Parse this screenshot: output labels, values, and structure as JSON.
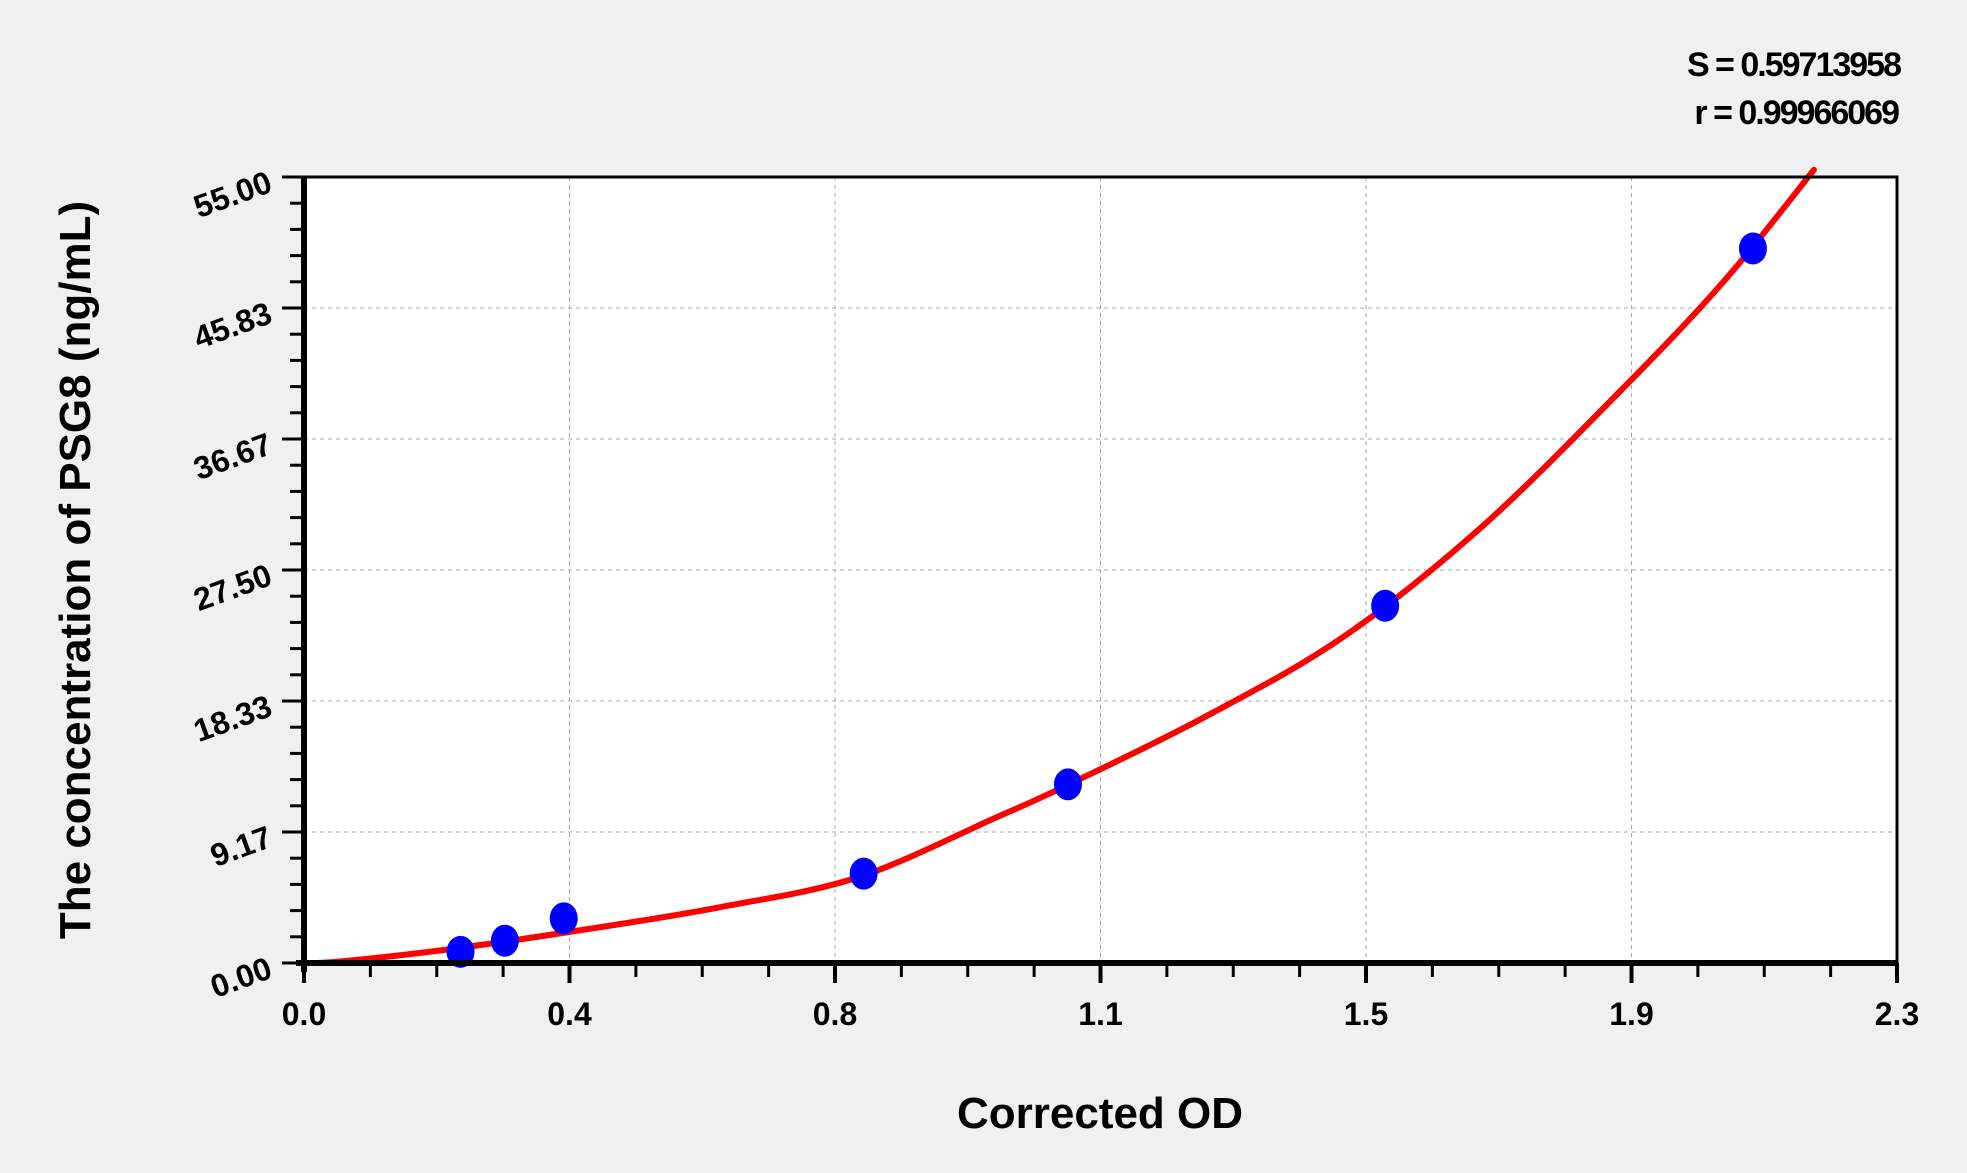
{
  "chart_data": {
    "type": "scatter",
    "title": "",
    "xlabel": "Corrected OD",
    "ylabel": "The concentration of PSG8 (ng/mL)",
    "xlim": [
      0,
      2.3
    ],
    "ylim": [
      0,
      55
    ],
    "x_ticks": [
      "0.0",
      "0.4",
      "0.8",
      "1.1",
      "1.5",
      "1.9",
      "2.3"
    ],
    "y_ticks": [
      "0.00",
      "9.17",
      "18.33",
      "27.50",
      "36.67",
      "45.83",
      "55.00"
    ],
    "grid": true,
    "annotations": [
      "S = 0.59713958",
      "r = 0.99966069"
    ],
    "colors": {
      "points": "#0000ff",
      "curve": "#ff0000",
      "background": "#f0f0f0",
      "plot": "#ffffff"
    },
    "points": [
      {
        "x": 0.226,
        "y": 0.78
      },
      {
        "x": 0.29,
        "y": 1.56
      },
      {
        "x": 0.375,
        "y": 3.125
      },
      {
        "x": 0.808,
        "y": 6.25
      },
      {
        "x": 1.103,
        "y": 12.5
      },
      {
        "x": 1.561,
        "y": 25
      },
      {
        "x": 2.092,
        "y": 50
      }
    ],
    "curve": [
      {
        "x": 0.0,
        "y": 0.0
      },
      {
        "x": 0.05,
        "y": 0.1
      },
      {
        "x": 0.2,
        "y": 0.9
      },
      {
        "x": 0.4,
        "y": 2.3
      },
      {
        "x": 0.6,
        "y": 3.9
      },
      {
        "x": 0.8,
        "y": 6.0
      },
      {
        "x": 1.0,
        "y": 10.2
      },
      {
        "x": 1.1,
        "y": 12.4
      },
      {
        "x": 1.3,
        "y": 17.2
      },
      {
        "x": 1.5,
        "y": 22.8
      },
      {
        "x": 1.7,
        "y": 30.5
      },
      {
        "x": 1.9,
        "y": 40.0
      },
      {
        "x": 2.05,
        "y": 47.7
      },
      {
        "x": 2.18,
        "y": 55.5
      }
    ]
  }
}
